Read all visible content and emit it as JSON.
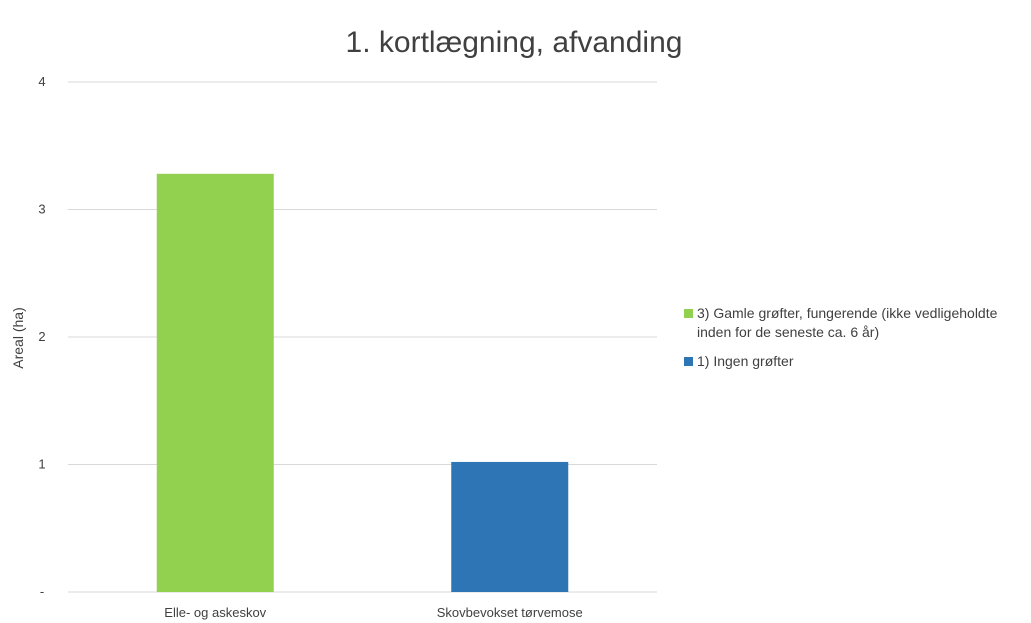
{
  "chart_data": {
    "type": "bar",
    "title": "1. kortlægning, afvanding",
    "xlabel": "",
    "ylabel": "Areal (ha)",
    "ylim": [
      0,
      4
    ],
    "yticks": [
      {
        "value": 0,
        "label": "-"
      },
      {
        "value": 1,
        "label": "1"
      },
      {
        "value": 2,
        "label": "2"
      },
      {
        "value": 3,
        "label": "3"
      },
      {
        "value": 4,
        "label": "4"
      }
    ],
    "grid": true,
    "legend_position": "right",
    "categories": [
      "Elle- og askeskov",
      "Skovbevokset tørvemose"
    ],
    "series": [
      {
        "name": "3) Gamle grøfter, fungerende (ikke vedligeholdte inden for de seneste ca. 6 år)",
        "color": "#92d050",
        "values": [
          3.28,
          0
        ]
      },
      {
        "name": "1) Ingen grøfter",
        "color": "#2e75b6",
        "values": [
          0,
          1.02
        ]
      }
    ]
  }
}
